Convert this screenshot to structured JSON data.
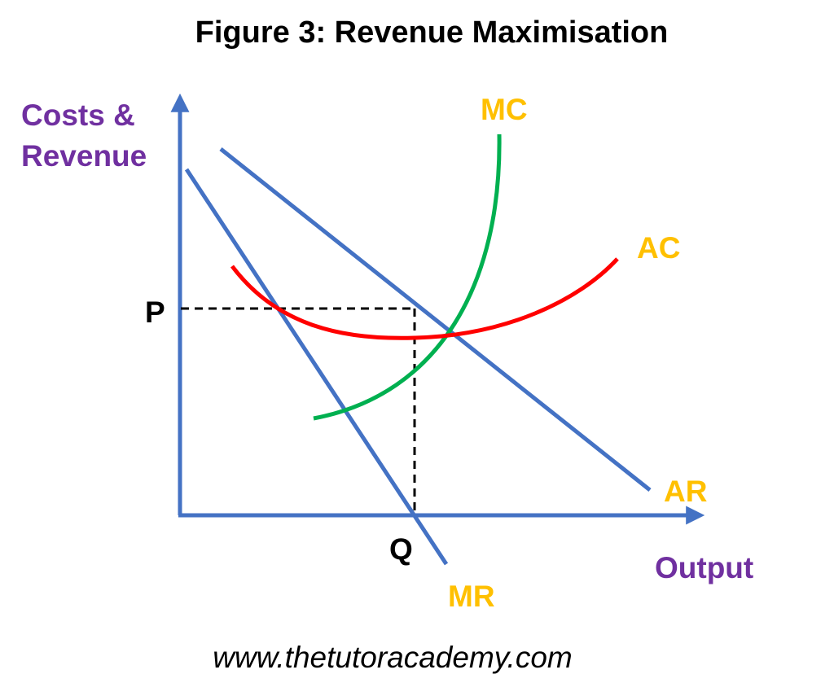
{
  "title": "Figure 3: Revenue Maximisation",
  "y_axis_label_line1": "Costs &",
  "y_axis_label_line2": "Revenue",
  "x_axis_label": "Output",
  "price_label": "P",
  "quantity_label": "Q",
  "curves": {
    "mc": {
      "label": "MC",
      "color": "#00b050"
    },
    "ac": {
      "label": "AC",
      "color": "#ff0000"
    },
    "ar": {
      "label": "AR",
      "color": "#4472c4"
    },
    "mr": {
      "label": "MR",
      "color": "#4472c4"
    }
  },
  "colors": {
    "axis": "#4472c4",
    "axis_label": "#7030a0",
    "curve_label": "#ffc000",
    "dashed": "#000000"
  },
  "footer": "www.thetutoracademy.com"
}
